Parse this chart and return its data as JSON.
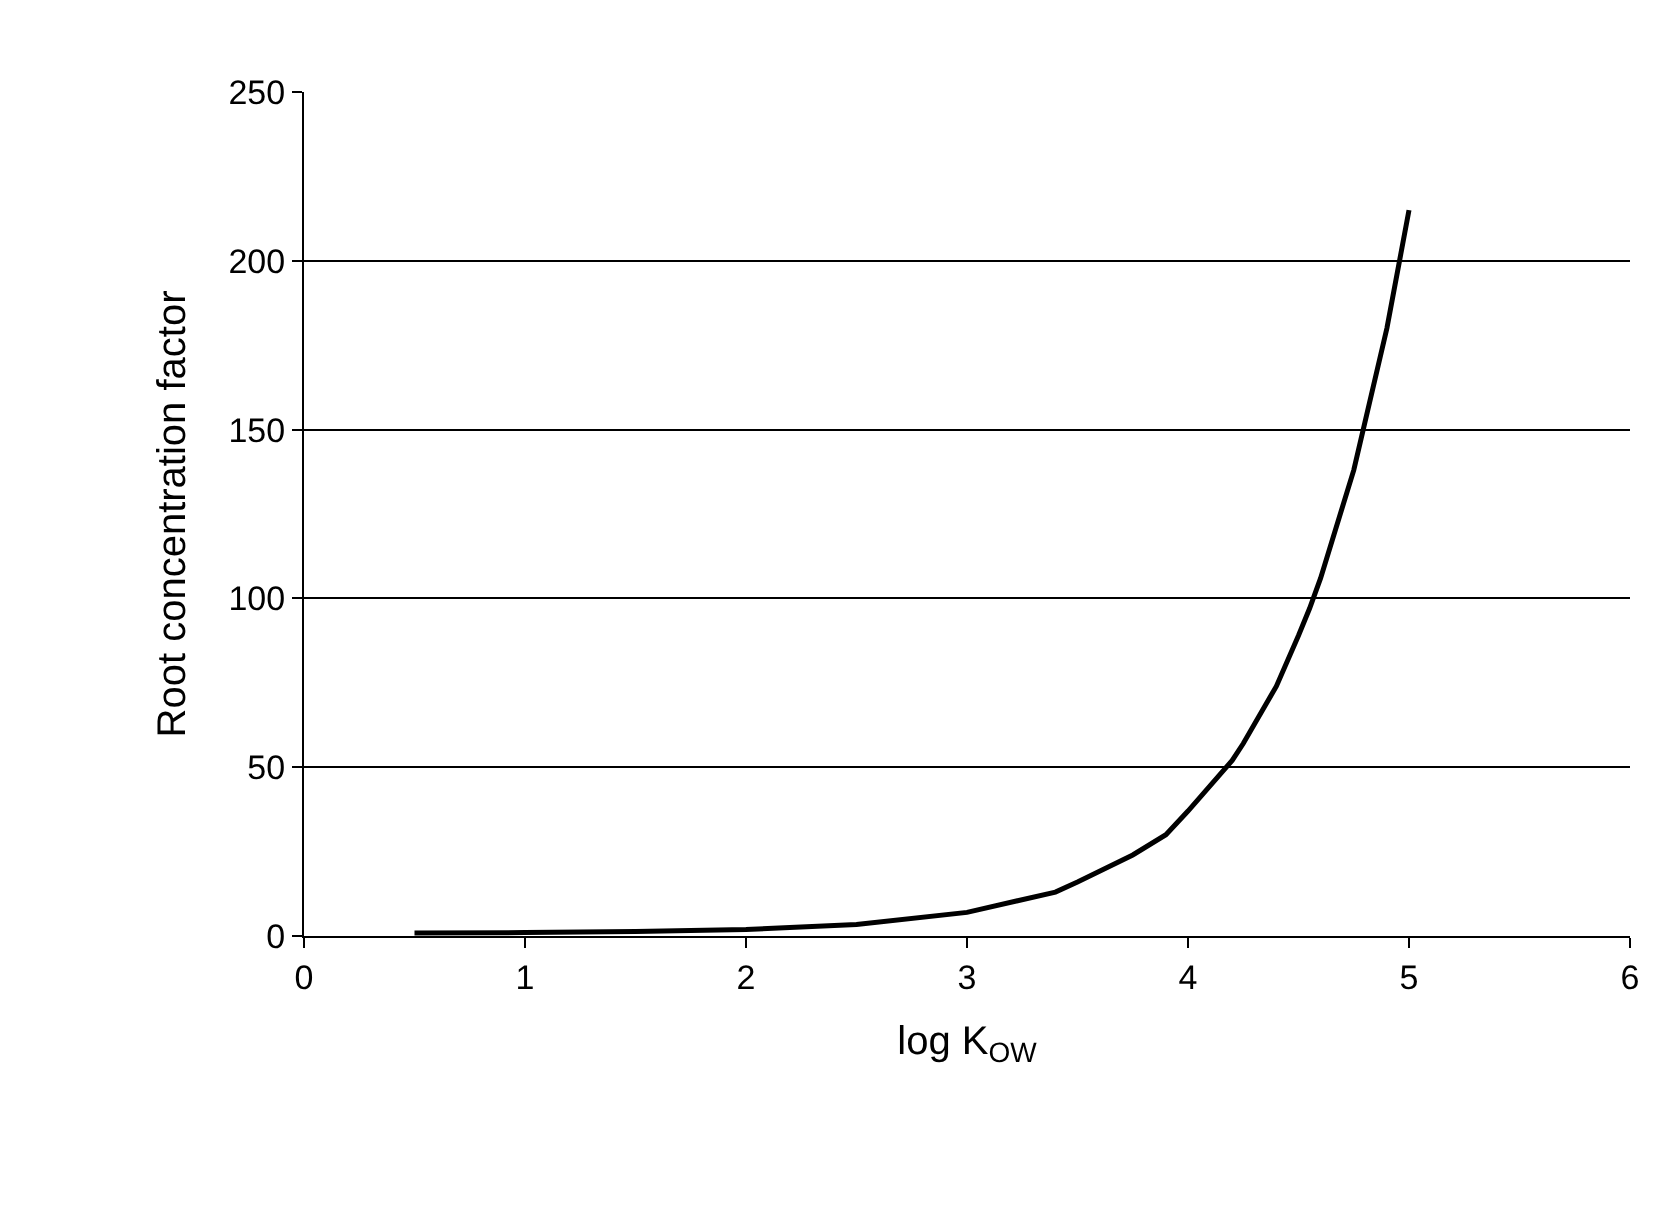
{
  "chart_data": {
    "type": "line",
    "xlabel": "log K$_{OW}$",
    "ylabel": "Root concentration factor",
    "x": [
      0.5,
      1,
      1.5,
      2,
      2.5,
      3,
      3.4,
      3.5,
      3.75,
      3.9,
      4,
      4.2,
      4.25,
      4.4,
      4.5,
      4.55,
      4.6,
      4.75,
      4.9,
      5
    ],
    "series": [
      {
        "color": "#000000",
        "values": [
          0.9,
          1,
          1.3,
          1.9,
          3.4,
          7,
          13,
          16,
          24,
          30,
          37,
          52,
          57,
          74,
          89,
          97,
          106,
          138,
          180,
          215
        ]
      }
    ],
    "xlim": [
      0,
      6
    ],
    "xticks": [
      0,
      1,
      2,
      3,
      4,
      5,
      6
    ],
    "ylim": [
      0,
      250
    ],
    "yticks": [
      0,
      50,
      100,
      150,
      200,
      250
    ],
    "grid": "y",
    "legend": false,
    "marker": "none",
    "line_style": "solid"
  }
}
